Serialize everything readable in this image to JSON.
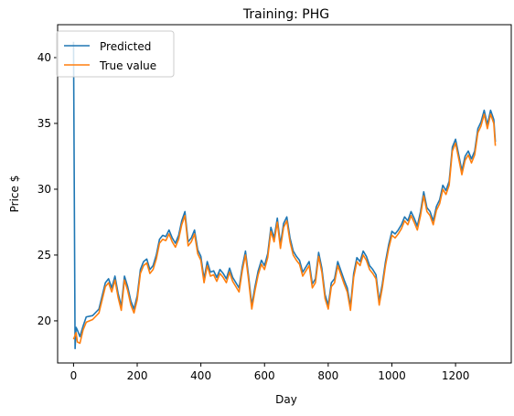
{
  "chart_data": {
    "type": "line",
    "title": "Training: PHG",
    "xlabel": "Day",
    "ylabel": "Price $",
    "xlim": [
      -50,
      1375
    ],
    "ylim": [
      16.8,
      42.5
    ],
    "xticks": [
      0,
      200,
      400,
      600,
      800,
      1000,
      1200
    ],
    "yticks": [
      20,
      25,
      30,
      35,
      40
    ],
    "grid": false,
    "legend_position": "top-left",
    "series": [
      {
        "name": "Predicted",
        "color": "#1f77b4",
        "x": [
          0,
          5,
          8,
          12,
          20,
          30,
          40,
          60,
          80,
          100,
          110,
          120,
          130,
          140,
          150,
          160,
          170,
          180,
          190,
          200,
          210,
          220,
          230,
          240,
          250,
          260,
          270,
          280,
          290,
          300,
          310,
          320,
          330,
          340,
          350,
          360,
          370,
          380,
          390,
          400,
          410,
          420,
          430,
          440,
          450,
          460,
          470,
          480,
          490,
          500,
          510,
          520,
          530,
          540,
          550,
          560,
          570,
          580,
          590,
          600,
          610,
          620,
          630,
          640,
          650,
          660,
          670,
          680,
          690,
          700,
          710,
          720,
          730,
          740,
          750,
          760,
          770,
          780,
          790,
          800,
          810,
          820,
          830,
          840,
          850,
          860,
          870,
          880,
          890,
          900,
          910,
          920,
          930,
          940,
          950,
          960,
          970,
          980,
          990,
          1000,
          1010,
          1020,
          1030,
          1040,
          1050,
          1060,
          1070,
          1080,
          1090,
          1100,
          1110,
          1120,
          1130,
          1140,
          1150,
          1160,
          1170,
          1180,
          1190,
          1200,
          1210,
          1220,
          1230,
          1240,
          1250,
          1260,
          1270,
          1280,
          1290,
          1300,
          1310,
          1320,
          1325
        ],
        "y": [
          41.2,
          17.9,
          19.5,
          19.3,
          18.8,
          19.6,
          20.3,
          20.4,
          20.9,
          22.9,
          23.2,
          22.5,
          23.4,
          22.1,
          21.1,
          23.4,
          22.6,
          21.5,
          20.9,
          21.9,
          23.9,
          24.5,
          24.7,
          23.9,
          24.2,
          25.0,
          26.2,
          26.5,
          26.4,
          26.9,
          26.3,
          25.9,
          26.5,
          27.6,
          28.3,
          26.0,
          26.3,
          26.9,
          25.4,
          24.9,
          23.2,
          24.5,
          23.7,
          23.8,
          23.3,
          23.9,
          23.6,
          23.2,
          24.0,
          23.3,
          22.9,
          22.5,
          24.1,
          25.3,
          23.4,
          21.2,
          22.6,
          23.8,
          24.6,
          24.2,
          25.1,
          27.1,
          26.3,
          27.8,
          25.8,
          27.4,
          27.9,
          26.3,
          25.3,
          24.9,
          24.6,
          23.7,
          24.1,
          24.5,
          22.8,
          23.2,
          25.2,
          24.0,
          22.0,
          21.2,
          22.9,
          23.2,
          24.5,
          23.8,
          23.1,
          22.5,
          21.1,
          23.6,
          24.8,
          24.5,
          25.3,
          24.9,
          24.2,
          23.9,
          23.5,
          21.5,
          22.8,
          24.5,
          25.8,
          26.8,
          26.6,
          26.9,
          27.3,
          27.9,
          27.6,
          28.3,
          27.8,
          27.2,
          28.3,
          29.8,
          28.6,
          28.3,
          27.6,
          28.7,
          29.2,
          30.3,
          29.9,
          30.6,
          33.2,
          33.8,
          32.6,
          31.4,
          32.5,
          32.9,
          32.3,
          32.9,
          34.6,
          35.1,
          36.0,
          34.9,
          36.0,
          35.3,
          33.6
        ]
      },
      {
        "name": "True value",
        "color": "#ff7f0e",
        "x": [
          0,
          5,
          8,
          12,
          20,
          30,
          40,
          60,
          80,
          100,
          110,
          120,
          130,
          140,
          150,
          160,
          170,
          180,
          190,
          200,
          210,
          220,
          230,
          240,
          250,
          260,
          270,
          280,
          290,
          300,
          310,
          320,
          330,
          340,
          350,
          360,
          370,
          380,
          390,
          400,
          410,
          420,
          430,
          440,
          450,
          460,
          470,
          480,
          490,
          500,
          510,
          520,
          530,
          540,
          550,
          560,
          570,
          580,
          590,
          600,
          610,
          620,
          630,
          640,
          650,
          660,
          670,
          680,
          690,
          700,
          710,
          720,
          730,
          740,
          750,
          760,
          770,
          780,
          790,
          800,
          810,
          820,
          830,
          840,
          850,
          860,
          870,
          880,
          890,
          900,
          910,
          920,
          930,
          940,
          950,
          960,
          970,
          980,
          990,
          1000,
          1010,
          1020,
          1030,
          1040,
          1050,
          1060,
          1070,
          1080,
          1090,
          1100,
          1110,
          1120,
          1130,
          1140,
          1150,
          1160,
          1170,
          1180,
          1190,
          1200,
          1210,
          1220,
          1230,
          1240,
          1250,
          1260,
          1270,
          1280,
          1290,
          1300,
          1310,
          1320,
          1325
        ],
        "y": [
          18.6,
          18.9,
          19.1,
          18.4,
          18.3,
          19.3,
          19.9,
          20.1,
          20.6,
          22.6,
          22.9,
          22.2,
          23.1,
          21.8,
          20.8,
          23.1,
          22.3,
          21.2,
          20.6,
          21.6,
          23.6,
          24.2,
          24.4,
          23.6,
          23.9,
          24.7,
          25.9,
          26.2,
          26.1,
          26.6,
          26.0,
          25.6,
          26.2,
          27.3,
          28.0,
          25.7,
          26.0,
          26.6,
          25.1,
          24.6,
          22.9,
          24.2,
          23.4,
          23.5,
          23.0,
          23.6,
          23.3,
          22.9,
          23.7,
          23.0,
          22.6,
          22.2,
          23.8,
          25.0,
          23.1,
          20.9,
          22.3,
          23.5,
          24.3,
          23.9,
          24.8,
          26.8,
          26.0,
          27.5,
          25.5,
          27.1,
          27.6,
          26.0,
          25.0,
          24.6,
          24.3,
          23.4,
          23.8,
          24.2,
          22.5,
          22.9,
          24.9,
          23.7,
          21.7,
          20.9,
          22.6,
          22.9,
          24.2,
          23.5,
          22.8,
          22.2,
          20.8,
          23.3,
          24.5,
          24.2,
          25.0,
          24.6,
          23.9,
          23.6,
          23.2,
          21.2,
          22.5,
          24.2,
          25.5,
          26.5,
          26.3,
          26.6,
          27.0,
          27.6,
          27.3,
          28.0,
          27.5,
          26.9,
          28.0,
          29.5,
          28.3,
          28.0,
          27.3,
          28.4,
          28.9,
          30.0,
          29.6,
          30.3,
          32.9,
          33.5,
          32.3,
          31.1,
          32.2,
          32.6,
          32.0,
          32.6,
          34.3,
          34.8,
          35.7,
          34.6,
          35.7,
          35.0,
          33.3
        ]
      }
    ]
  }
}
